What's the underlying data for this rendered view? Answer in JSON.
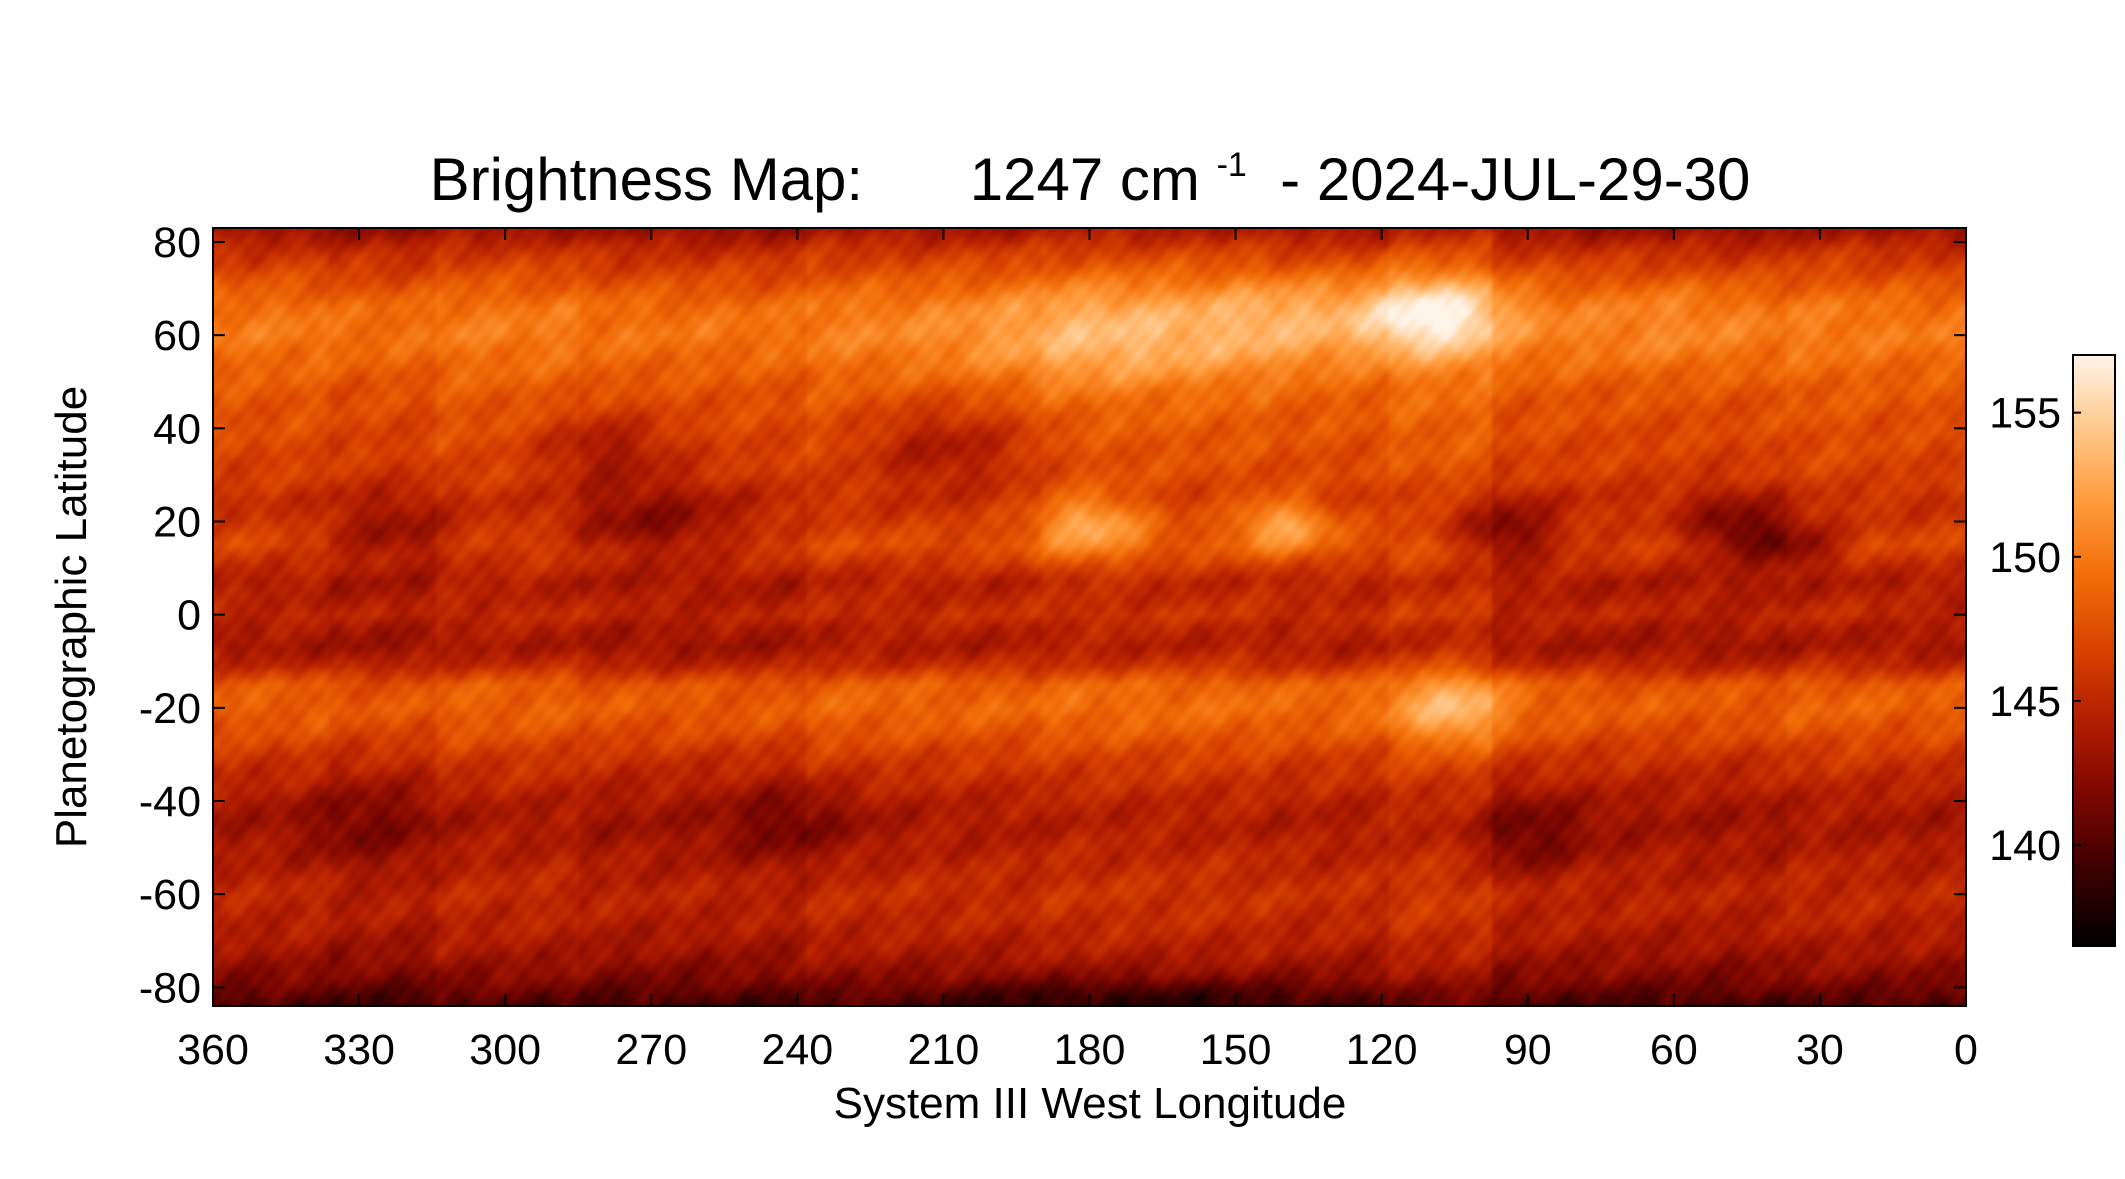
{
  "chart_data": {
    "type": "heatmap",
    "title": {
      "prefix": "Brightness Map:",
      "wavenumber": "1247 cm",
      "exponent": "-1",
      "suffix": " - 2024-JUL-29-30"
    },
    "xlabel": "System III West Longitude",
    "ylabel": "Planetographic Latitude",
    "xlim": [
      360,
      0
    ],
    "ylim": [
      -84,
      83
    ],
    "x_ticks": [
      360,
      330,
      300,
      270,
      240,
      210,
      180,
      150,
      120,
      90,
      60,
      30,
      0
    ],
    "x_tick_labels": [
      "360",
      "330",
      "300",
      "270",
      "240",
      "210",
      "180",
      "150",
      "120",
      "90",
      "60",
      "30",
      "0"
    ],
    "y_ticks": [
      80,
      60,
      40,
      20,
      0,
      -20,
      -40,
      -60,
      -80
    ],
    "y_tick_labels": [
      "80",
      "60",
      "40",
      "20",
      "0",
      "-20",
      "-40",
      "-60",
      "-80"
    ],
    "colorbar": {
      "range": [
        136.5,
        157
      ],
      "ticks": [
        155,
        150,
        145,
        140
      ],
      "tick_labels": [
        "155",
        "150",
        "145",
        "140"
      ],
      "colormap": "hot (black-red-orange-white)",
      "colors": [
        "#000000",
        "#3a0000",
        "#7a0600",
        "#b01c00",
        "#d64200",
        "#f26d08",
        "#ff9a3a",
        "#ffc88a",
        "#fff4e8"
      ]
    },
    "latitude_profile": [
      {
        "lat": 83,
        "value": 143.0
      },
      {
        "lat": 78,
        "value": 145.5
      },
      {
        "lat": 72,
        "value": 147.5
      },
      {
        "lat": 66,
        "value": 149.5
      },
      {
        "lat": 60,
        "value": 150.0
      },
      {
        "lat": 54,
        "value": 149.0
      },
      {
        "lat": 48,
        "value": 148.0
      },
      {
        "lat": 42,
        "value": 147.5
      },
      {
        "lat": 36,
        "value": 147.0
      },
      {
        "lat": 30,
        "value": 146.5
      },
      {
        "lat": 25,
        "value": 145.5
      },
      {
        "lat": 20,
        "value": 146.0
      },
      {
        "lat": 15,
        "value": 147.0
      },
      {
        "lat": 11,
        "value": 145.5
      },
      {
        "lat": 7,
        "value": 144.0
      },
      {
        "lat": 3,
        "value": 144.5
      },
      {
        "lat": 0,
        "value": 145.0
      },
      {
        "lat": -3,
        "value": 144.0
      },
      {
        "lat": -7,
        "value": 143.5
      },
      {
        "lat": -11,
        "value": 145.0
      },
      {
        "lat": -15,
        "value": 148.0
      },
      {
        "lat": -20,
        "value": 148.5
      },
      {
        "lat": -25,
        "value": 147.5
      },
      {
        "lat": -30,
        "value": 146.0
      },
      {
        "lat": -35,
        "value": 145.0
      },
      {
        "lat": -40,
        "value": 144.0
      },
      {
        "lat": -45,
        "value": 143.5
      },
      {
        "lat": -50,
        "value": 144.0
      },
      {
        "lat": -55,
        "value": 144.5
      },
      {
        "lat": -60,
        "value": 145.0
      },
      {
        "lat": -66,
        "value": 144.5
      },
      {
        "lat": -72,
        "value": 143.5
      },
      {
        "lat": -78,
        "value": 142.0
      },
      {
        "lat": -84,
        "value": 139.5
      }
    ],
    "longitude_strips": [
      {
        "lon_start": 360,
        "lon_end": 336,
        "offset": 0.0
      },
      {
        "lon_start": 336,
        "lon_end": 314,
        "offset": -0.5
      },
      {
        "lon_start": 314,
        "lon_end": 285,
        "offset": 0.2
      },
      {
        "lon_start": 285,
        "lon_end": 238,
        "offset": -0.3
      },
      {
        "lon_start": 238,
        "lon_end": 190,
        "offset": 0.4
      },
      {
        "lon_start": 190,
        "lon_end": 143,
        "offset": 0.8
      },
      {
        "lon_start": 143,
        "lon_end": 119,
        "offset": 0.5
      },
      {
        "lon_start": 119,
        "lon_end": 97,
        "offset": 1.2
      },
      {
        "lon_start": 97,
        "lon_end": 77,
        "offset": 0.0
      },
      {
        "lon_start": 77,
        "lon_end": 57,
        "offset": -0.2
      },
      {
        "lon_start": 57,
        "lon_end": 37,
        "offset": -0.3
      },
      {
        "lon_start": 37,
        "lon_end": 19,
        "offset": 0.2
      },
      {
        "lon_start": 19,
        "lon_end": 0,
        "offset": 0.0
      }
    ],
    "features": [
      {
        "lon": 110,
        "lat": 64,
        "value": 156.5,
        "radius_lon": 16,
        "radius_lat": 8
      },
      {
        "lon": 175,
        "lat": 60,
        "value": 153.0,
        "radius_lon": 30,
        "radius_lat": 10
      },
      {
        "lon": 140,
        "lat": 63,
        "value": 152.0,
        "radius_lon": 15,
        "radius_lat": 8
      },
      {
        "lon": 60,
        "lat": 62,
        "value": 151.0,
        "radius_lon": 20,
        "radius_lat": 8
      },
      {
        "lon": 180,
        "lat": 19,
        "value": 152.0,
        "radius_lon": 12,
        "radius_lat": 7
      },
      {
        "lon": 140,
        "lat": 19,
        "value": 152.0,
        "radius_lon": 10,
        "radius_lat": 6
      },
      {
        "lon": 105,
        "lat": -20,
        "value": 152.5,
        "radius_lon": 12,
        "radius_lat": 7
      },
      {
        "lon": 270,
        "lat": 20,
        "value": 142.5,
        "radius_lon": 18,
        "radius_lat": 8
      },
      {
        "lon": 322,
        "lat": 18,
        "value": 143.5,
        "radius_lon": 15,
        "radius_lat": 8
      },
      {
        "lon": 95,
        "lat": 18,
        "value": 141.5,
        "radius_lon": 12,
        "radius_lat": 7
      },
      {
        "lon": 48,
        "lat": 19,
        "value": 142.0,
        "radius_lon": 10,
        "radius_lat": 7
      },
      {
        "lon": 210,
        "lat": 35,
        "value": 143.5,
        "radius_lon": 18,
        "radius_lat": 10
      },
      {
        "lon": 280,
        "lat": 35,
        "value": 144.0,
        "radius_lon": 15,
        "radius_lat": 8
      },
      {
        "lon": 90,
        "lat": -47,
        "value": 141.0,
        "radius_lon": 12,
        "radius_lat": 8
      },
      {
        "lon": 240,
        "lat": -45,
        "value": 141.5,
        "radius_lon": 15,
        "radius_lat": 8
      },
      {
        "lon": 330,
        "lat": -45,
        "value": 142.0,
        "radius_lon": 15,
        "radius_lat": 8
      },
      {
        "lon": 35,
        "lat": 15,
        "value": 142.5,
        "radius_lon": 10,
        "radius_lat": 7
      },
      {
        "lon": 170,
        "lat": -84,
        "value": 137.5,
        "radius_lon": 40,
        "radius_lat": 5
      }
    ]
  }
}
